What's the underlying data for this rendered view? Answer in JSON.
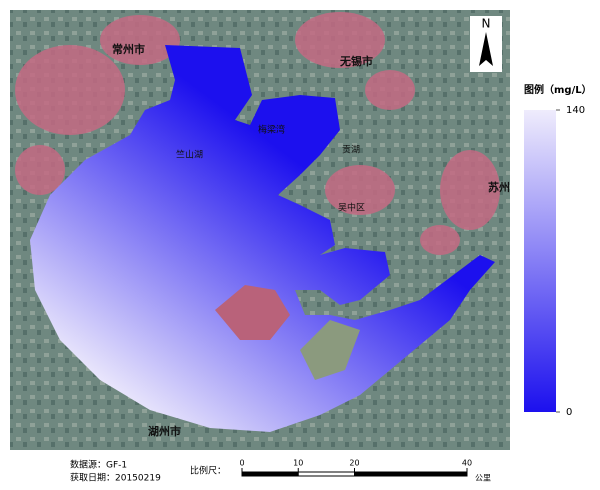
{
  "map": {
    "labels": [
      "常州市",
      "无锡市",
      "梅梁湾",
      "竺山湖",
      "贡湖",
      "吴中区",
      "苏州",
      "湖州市"
    ]
  },
  "north": "N",
  "legend": {
    "title": "图例（mg/L）",
    "min": 0,
    "max": 140,
    "ticks": [
      140,
      0
    ],
    "colors": {
      "low": "#1c10ee",
      "high": "#efecfc"
    }
  },
  "footer": {
    "source": "数据源：GF-1",
    "date": "获取日期：20150219"
  },
  "scale_bar": {
    "label": "比例尺：",
    "ticks": [
      0,
      10,
      20,
      40
    ],
    "unit": "公里"
  }
}
